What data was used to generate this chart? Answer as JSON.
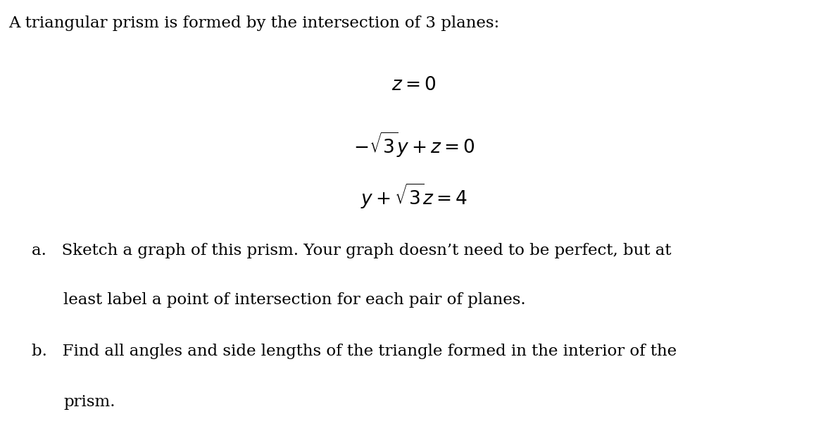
{
  "background_color": "#ffffff",
  "title_text": "A triangular prism is formed by the intersection of 3 planes:",
  "eq1": "$z = 0$",
  "eq2": "$-\\sqrt{3}y + z = 0$",
  "eq3": "$y + \\sqrt{3}z = 4$",
  "part_a_line1": "a.   Sketch a graph of this prism. Your graph doesn’t need to be perfect, but at",
  "part_a_line2": "least label a point of intersection for each pair of planes.",
  "part_b_line1": "b.   Find all angles and side lengths of the triangle formed in the interior of the",
  "part_b_line2": "prism.",
  "title_fontsize": 16.5,
  "eq_fontsize": 19,
  "body_fontsize": 16.5,
  "text_color": "#000000",
  "fig_width": 11.76,
  "fig_height": 6.32,
  "dpi": 100
}
